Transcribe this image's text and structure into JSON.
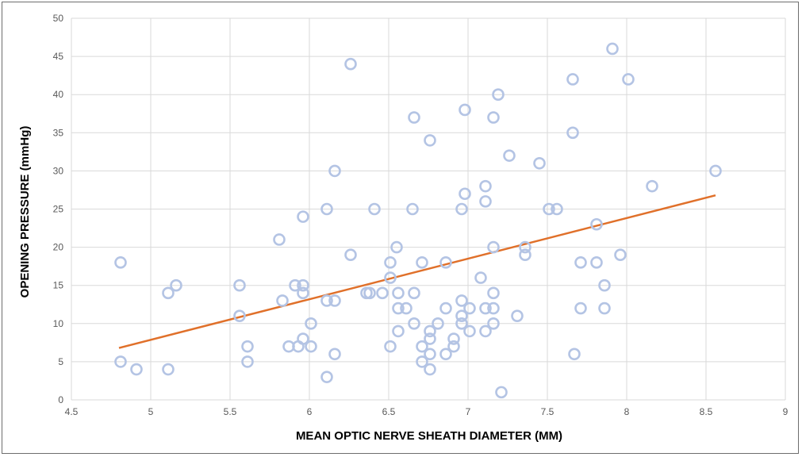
{
  "chart_data": {
    "type": "scatter",
    "xlabel": "MEAN OPTIC NERVE SHEATH DIAMETER (MM)",
    "ylabel": "OPENING PRESSURE (mmHg)",
    "xlim": [
      4.5,
      9
    ],
    "ylim": [
      0,
      50
    ],
    "xticks": [
      "4.5",
      "5",
      "5.5",
      "6",
      "6.5",
      "7",
      "7.5",
      "8",
      "8.5",
      "9"
    ],
    "yticks": [
      "0",
      "5",
      "10",
      "15",
      "20",
      "25",
      "30",
      "35",
      "40",
      "45",
      "50"
    ],
    "grid": true,
    "colors": {
      "marker": "#b4c4e4",
      "trendline": "#e0702a",
      "grid": "#d9d9d9"
    },
    "series": [
      {
        "marker": "hollow-circle",
        "points": [
          [
            4.81,
            18
          ],
          [
            4.81,
            5
          ],
          [
            4.91,
            4
          ],
          [
            5.11,
            14
          ],
          [
            5.16,
            15
          ],
          [
            5.11,
            4
          ],
          [
            5.56,
            15
          ],
          [
            5.56,
            11
          ],
          [
            5.61,
            7
          ],
          [
            5.61,
            5
          ],
          [
            5.81,
            21
          ],
          [
            5.83,
            13
          ],
          [
            5.87,
            7
          ],
          [
            5.91,
            15
          ],
          [
            5.93,
            7
          ],
          [
            5.96,
            24
          ],
          [
            5.96,
            15
          ],
          [
            5.96,
            14
          ],
          [
            5.96,
            8
          ],
          [
            6.01,
            10
          ],
          [
            6.01,
            7
          ],
          [
            6.11,
            25
          ],
          [
            6.11,
            13
          ],
          [
            6.11,
            3
          ],
          [
            6.16,
            30
          ],
          [
            6.16,
            13
          ],
          [
            6.16,
            6
          ],
          [
            6.26,
            44
          ],
          [
            6.26,
            19
          ],
          [
            6.36,
            14
          ],
          [
            6.38,
            14
          ],
          [
            6.41,
            25
          ],
          [
            6.46,
            14
          ],
          [
            6.51,
            18
          ],
          [
            6.51,
            16
          ],
          [
            6.51,
            7
          ],
          [
            6.55,
            20
          ],
          [
            6.56,
            14
          ],
          [
            6.56,
            12
          ],
          [
            6.56,
            9
          ],
          [
            6.61,
            12
          ],
          [
            6.65,
            25
          ],
          [
            6.66,
            37
          ],
          [
            6.66,
            14
          ],
          [
            6.66,
            10
          ],
          [
            6.71,
            18
          ],
          [
            6.71,
            7
          ],
          [
            6.71,
            5
          ],
          [
            6.76,
            34
          ],
          [
            6.76,
            9
          ],
          [
            6.76,
            8
          ],
          [
            6.76,
            6
          ],
          [
            6.76,
            4
          ],
          [
            6.81,
            10
          ],
          [
            6.86,
            18
          ],
          [
            6.86,
            12
          ],
          [
            6.86,
            6
          ],
          [
            6.91,
            8
          ],
          [
            6.91,
            7
          ],
          [
            6.96,
            25
          ],
          [
            6.96,
            13
          ],
          [
            6.96,
            11
          ],
          [
            6.96,
            10
          ],
          [
            6.98,
            38
          ],
          [
            6.98,
            27
          ],
          [
            7.01,
            12
          ],
          [
            7.01,
            9
          ],
          [
            7.08,
            16
          ],
          [
            7.11,
            28
          ],
          [
            7.11,
            26
          ],
          [
            7.11,
            12
          ],
          [
            7.11,
            9
          ],
          [
            7.16,
            37
          ],
          [
            7.16,
            20
          ],
          [
            7.16,
            14
          ],
          [
            7.16,
            12
          ],
          [
            7.16,
            10
          ],
          [
            7.19,
            40
          ],
          [
            7.21,
            1
          ],
          [
            7.26,
            32
          ],
          [
            7.31,
            11
          ],
          [
            7.36,
            20
          ],
          [
            7.36,
            19
          ],
          [
            7.45,
            31
          ],
          [
            7.51,
            25
          ],
          [
            7.56,
            25
          ],
          [
            7.66,
            42
          ],
          [
            7.66,
            35
          ],
          [
            7.67,
            6
          ],
          [
            7.71,
            18
          ],
          [
            7.71,
            12
          ],
          [
            7.81,
            23
          ],
          [
            7.81,
            18
          ],
          [
            7.86,
            15
          ],
          [
            7.86,
            12
          ],
          [
            7.91,
            46
          ],
          [
            7.96,
            19
          ],
          [
            8.01,
            42
          ],
          [
            8.16,
            28
          ],
          [
            8.56,
            30
          ]
        ]
      }
    ],
    "trendline": {
      "x": [
        4.8,
        8.56
      ],
      "y": [
        6.8,
        26.8
      ]
    }
  }
}
